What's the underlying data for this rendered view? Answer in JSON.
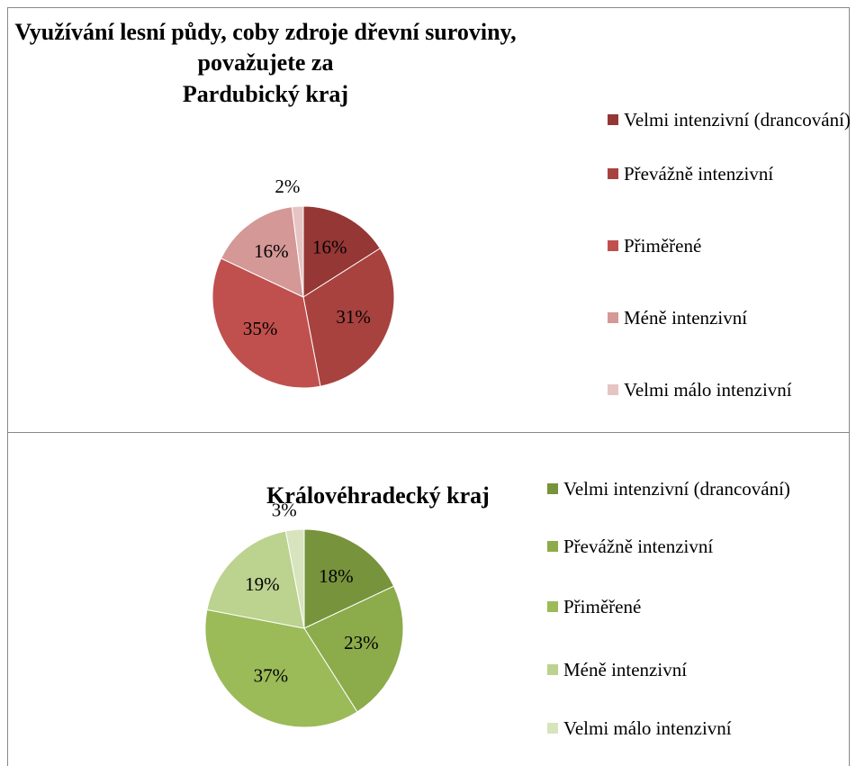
{
  "chart_data": [
    {
      "type": "pie",
      "title": [
        "Využívání lesní půdy, coby zdroje dřevní suroviny,",
        "považujete za",
        "Pardubický kraj"
      ],
      "categories": [
        "Velmi intenzivní (drancování)",
        "Převážně intenzivní",
        "Přiměřené",
        "Méně intenzivní",
        "Velmi málo intenzivní"
      ],
      "values": [
        16,
        31,
        35,
        16,
        2
      ],
      "value_labels": [
        "16%",
        "31%",
        "35%",
        "16%",
        "2%"
      ],
      "colors": [
        "#953735",
        "#a8423f",
        "#c0504d",
        "#d49896",
        "#e6c4c3"
      ]
    },
    {
      "type": "pie",
      "title": [
        "Královéhradecký kraj"
      ],
      "categories": [
        "Velmi intenzivní (drancování)",
        "Převážně intenzivní",
        "Přiměřené",
        "Méně intenzivní",
        "Velmi málo intenzivní"
      ],
      "values": [
        18,
        23,
        37,
        19,
        3
      ],
      "value_labels": [
        "18%",
        "23%",
        "37%",
        "19%",
        "3%"
      ],
      "colors": [
        "#77933c",
        "#8cab4a",
        "#9bbb59",
        "#bcd28f",
        "#d7e4bd"
      ]
    }
  ]
}
